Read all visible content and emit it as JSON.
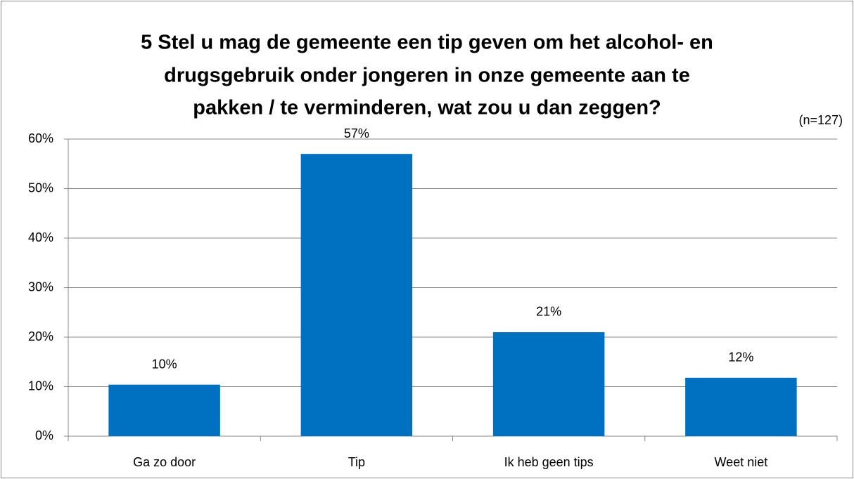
{
  "chart_data": {
    "type": "bar",
    "title": [
      "5 Stel u mag de gemeente een tip geven om het alcohol- en",
      "drugsgebruik onder jongeren in onze gemeente aan te",
      "pakken / te verminderen, wat zou u dan zeggen?"
    ],
    "subtitle": "(n=127)",
    "categories": [
      "Ga zo door",
      "Tip",
      "Ik heb geen tips",
      "Weet niet"
    ],
    "values": [
      10.4,
      57,
      21,
      11.8
    ],
    "value_labels": [
      "10%",
      "57%",
      "21%",
      "12%"
    ],
    "color": "#0070c0",
    "ylim": [
      0,
      60
    ],
    "yticks": [
      {
        "value": 0,
        "label": "0%"
      },
      {
        "value": 10,
        "label": "10%"
      },
      {
        "value": 20,
        "label": "20%"
      },
      {
        "value": 30,
        "label": "30%"
      },
      {
        "value": 40,
        "label": "40%"
      },
      {
        "value": 50,
        "label": "50%"
      },
      {
        "value": 60,
        "label": "60%"
      }
    ],
    "grid": true
  }
}
